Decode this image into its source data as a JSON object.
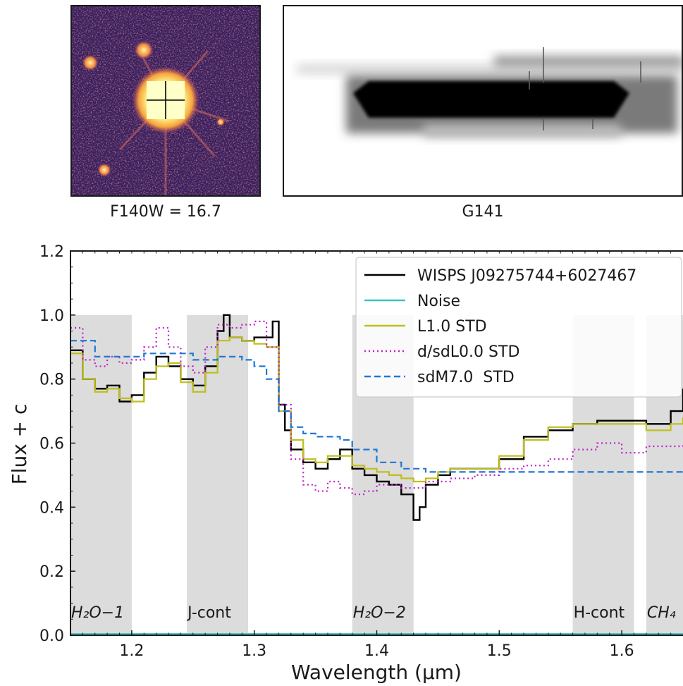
{
  "image_panel": {
    "caption": "F140W = 16.7"
  },
  "spectrum_panel": {
    "caption": "G141"
  },
  "chart_data": {
    "type": "line",
    "xlabel": "Wavelength (μm)",
    "ylabel": "Flux + c",
    "xlim": [
      1.15,
      1.65
    ],
    "ylim": [
      0.0,
      1.2
    ],
    "xticks": [
      1.2,
      1.3,
      1.4,
      1.5,
      1.6
    ],
    "yticks": [
      0.0,
      0.2,
      0.4,
      0.6,
      0.8,
      1.0,
      1.2
    ],
    "legend_position": "top-right",
    "bands": [
      {
        "label": "H₂O−1",
        "x0": 1.15,
        "x1": 1.2
      },
      {
        "label": "J-cont",
        "x0": 1.245,
        "x1": 1.295
      },
      {
        "label": "H₂O−2",
        "x0": 1.38,
        "x1": 1.43
      },
      {
        "label": "H-cont",
        "x0": 1.56,
        "x1": 1.61
      },
      {
        "label": "CH₄",
        "x0": 1.62,
        "x1": 1.65
      }
    ],
    "band_top": 1.0,
    "series": [
      {
        "name": "WISPS J09275744+6027467",
        "color": "#000000",
        "dash": "",
        "step": true,
        "x": [
          1.15,
          1.16,
          1.17,
          1.18,
          1.19,
          1.2,
          1.21,
          1.22,
          1.23,
          1.24,
          1.25,
          1.26,
          1.27,
          1.275,
          1.28,
          1.29,
          1.3,
          1.31,
          1.315,
          1.32,
          1.325,
          1.33,
          1.34,
          1.35,
          1.36,
          1.37,
          1.38,
          1.39,
          1.4,
          1.41,
          1.42,
          1.43,
          1.435,
          1.44,
          1.45,
          1.46,
          1.48,
          1.5,
          1.52,
          1.54,
          1.56,
          1.58,
          1.6,
          1.62,
          1.64,
          1.65
        ],
        "y": [
          0.89,
          0.8,
          0.77,
          0.78,
          0.73,
          0.75,
          0.82,
          0.87,
          0.84,
          0.8,
          0.78,
          0.84,
          0.95,
          1.0,
          0.93,
          0.92,
          0.93,
          0.93,
          0.98,
          0.72,
          0.64,
          0.58,
          0.54,
          0.52,
          0.55,
          0.58,
          0.52,
          0.5,
          0.48,
          0.47,
          0.44,
          0.36,
          0.4,
          0.47,
          0.5,
          0.52,
          0.52,
          0.55,
          0.62,
          0.64,
          0.66,
          0.67,
          0.67,
          0.66,
          0.7,
          0.77
        ]
      },
      {
        "name": "Noise",
        "color": "#39c3c3",
        "dash": "",
        "step": false,
        "x": [
          1.15,
          1.65
        ],
        "y": [
          0.004,
          0.004
        ]
      },
      {
        "name": "L1.0 STD",
        "color": "#bfbf1a",
        "dash": "",
        "step": true,
        "x": [
          1.15,
          1.16,
          1.17,
          1.18,
          1.19,
          1.2,
          1.21,
          1.22,
          1.23,
          1.24,
          1.25,
          1.26,
          1.27,
          1.28,
          1.29,
          1.3,
          1.31,
          1.32,
          1.33,
          1.34,
          1.35,
          1.36,
          1.37,
          1.38,
          1.39,
          1.4,
          1.41,
          1.42,
          1.43,
          1.44,
          1.45,
          1.46,
          1.48,
          1.5,
          1.52,
          1.54,
          1.56,
          1.58,
          1.6,
          1.62,
          1.64,
          1.65
        ],
        "y": [
          0.88,
          0.8,
          0.76,
          0.77,
          0.74,
          0.73,
          0.8,
          0.84,
          0.85,
          0.79,
          0.76,
          0.82,
          0.92,
          0.93,
          0.92,
          0.91,
          0.9,
          0.7,
          0.61,
          0.55,
          0.54,
          0.56,
          0.56,
          0.53,
          0.52,
          0.51,
          0.5,
          0.49,
          0.48,
          0.49,
          0.51,
          0.52,
          0.52,
          0.56,
          0.61,
          0.65,
          0.66,
          0.66,
          0.66,
          0.64,
          0.66,
          0.68
        ]
      },
      {
        "name": "d/sdL0.0 STD",
        "color": "#c020c8",
        "dash": "2,4",
        "step": true,
        "x": [
          1.15,
          1.16,
          1.17,
          1.18,
          1.19,
          1.2,
          1.21,
          1.22,
          1.23,
          1.24,
          1.25,
          1.26,
          1.27,
          1.28,
          1.29,
          1.3,
          1.31,
          1.32,
          1.33,
          1.34,
          1.35,
          1.36,
          1.37,
          1.38,
          1.39,
          1.4,
          1.42,
          1.44,
          1.46,
          1.48,
          1.5,
          1.52,
          1.54,
          1.56,
          1.58,
          1.6,
          1.62,
          1.64,
          1.65
        ],
        "y": [
          0.96,
          0.86,
          0.84,
          0.87,
          0.85,
          0.86,
          0.9,
          0.96,
          0.9,
          0.84,
          0.82,
          0.9,
          0.97,
          0.96,
          0.97,
          0.98,
          0.9,
          0.72,
          0.55,
          0.47,
          0.45,
          0.48,
          0.46,
          0.44,
          0.45,
          0.47,
          0.46,
          0.48,
          0.49,
          0.5,
          0.52,
          0.53,
          0.55,
          0.58,
          0.6,
          0.57,
          0.59,
          0.59,
          0.6
        ]
      },
      {
        "name": "sdM7.0  STD",
        "color": "#1f77d4",
        "dash": "9,5",
        "step": true,
        "x": [
          1.15,
          1.17,
          1.19,
          1.21,
          1.23,
          1.25,
          1.27,
          1.29,
          1.3,
          1.31,
          1.32,
          1.33,
          1.34,
          1.35,
          1.36,
          1.37,
          1.38,
          1.4,
          1.42,
          1.44,
          1.46,
          1.5,
          1.55,
          1.6,
          1.65
        ],
        "y": [
          0.92,
          0.87,
          0.87,
          0.88,
          0.88,
          0.86,
          0.87,
          0.86,
          0.84,
          0.8,
          0.7,
          0.65,
          0.63,
          0.62,
          0.62,
          0.61,
          0.58,
          0.54,
          0.52,
          0.51,
          0.51,
          0.51,
          0.51,
          0.51,
          0.52
        ]
      }
    ]
  }
}
